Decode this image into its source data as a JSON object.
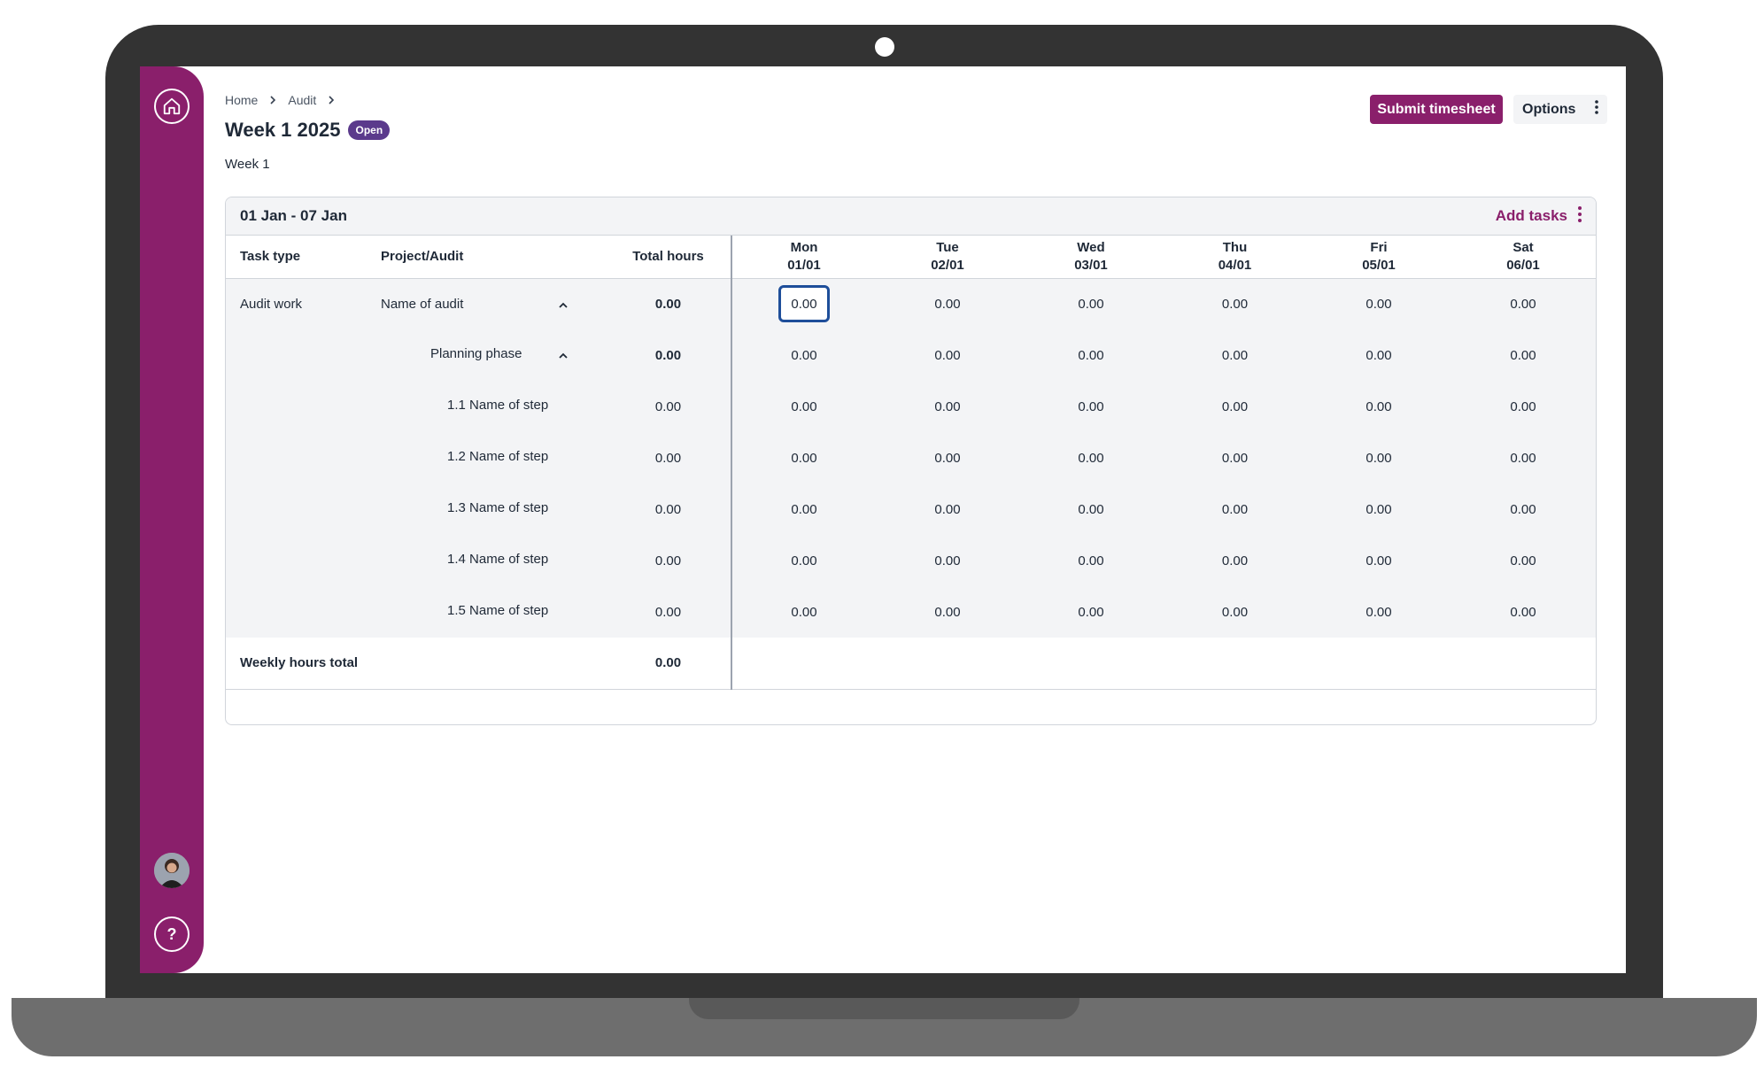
{
  "breadcrumb": {
    "home": "Home",
    "audit": "Audit"
  },
  "page": {
    "title": "Week 1 2025",
    "status": "Open",
    "subtitle": "Week 1"
  },
  "actions": {
    "submit": "Submit timesheet",
    "options": "Options"
  },
  "card": {
    "range": "01 Jan - 07 Jan",
    "add_tasks": "Add tasks"
  },
  "columns": {
    "task_type": "Task type",
    "project": "Project/Audit",
    "total": "Total hours",
    "days": [
      {
        "day": "Mon",
        "date": "01/01"
      },
      {
        "day": "Tue",
        "date": "02/01"
      },
      {
        "day": "Wed",
        "date": "03/01"
      },
      {
        "day": "Thu",
        "date": "04/01"
      },
      {
        "day": "Fri",
        "date": "05/01"
      },
      {
        "day": "Sat",
        "date": "06/01"
      }
    ]
  },
  "rows": [
    {
      "task_type": "Audit work",
      "project": "Name of audit",
      "total": "0.00",
      "values": [
        "0.00",
        "0.00",
        "0.00",
        "0.00",
        "0.00",
        "0.00"
      ]
    },
    {
      "task_type": "",
      "project": "Planning phase",
      "total": "0.00",
      "values": [
        "0.00",
        "0.00",
        "0.00",
        "0.00",
        "0.00",
        "0.00"
      ]
    },
    {
      "task_type": "",
      "project": "1.1 Name of step",
      "total": "0.00",
      "values": [
        "0.00",
        "0.00",
        "0.00",
        "0.00",
        "0.00",
        "0.00"
      ]
    },
    {
      "task_type": "",
      "project": "1.2 Name of step",
      "total": "0.00",
      "values": [
        "0.00",
        "0.00",
        "0.00",
        "0.00",
        "0.00",
        "0.00"
      ]
    },
    {
      "task_type": "",
      "project": "1.3 Name of step",
      "total": "0.00",
      "values": [
        "0.00",
        "0.00",
        "0.00",
        "0.00",
        "0.00",
        "0.00"
      ]
    },
    {
      "task_type": "",
      "project": "1.4 Name of step",
      "total": "0.00",
      "values": [
        "0.00",
        "0.00",
        "0.00",
        "0.00",
        "0.00",
        "0.00"
      ]
    },
    {
      "task_type": "",
      "project": "1.5 Name of step",
      "total": "0.00",
      "values": [
        "0.00",
        "0.00",
        "0.00",
        "0.00",
        "0.00",
        "0.00"
      ]
    }
  ],
  "footer": {
    "label": "Weekly hours total",
    "total": "0.00"
  },
  "help": {
    "label": "?"
  },
  "colors": {
    "brand": "#8a1f6b",
    "badge": "#5b3a8c",
    "focus": "#1e4e9a"
  }
}
